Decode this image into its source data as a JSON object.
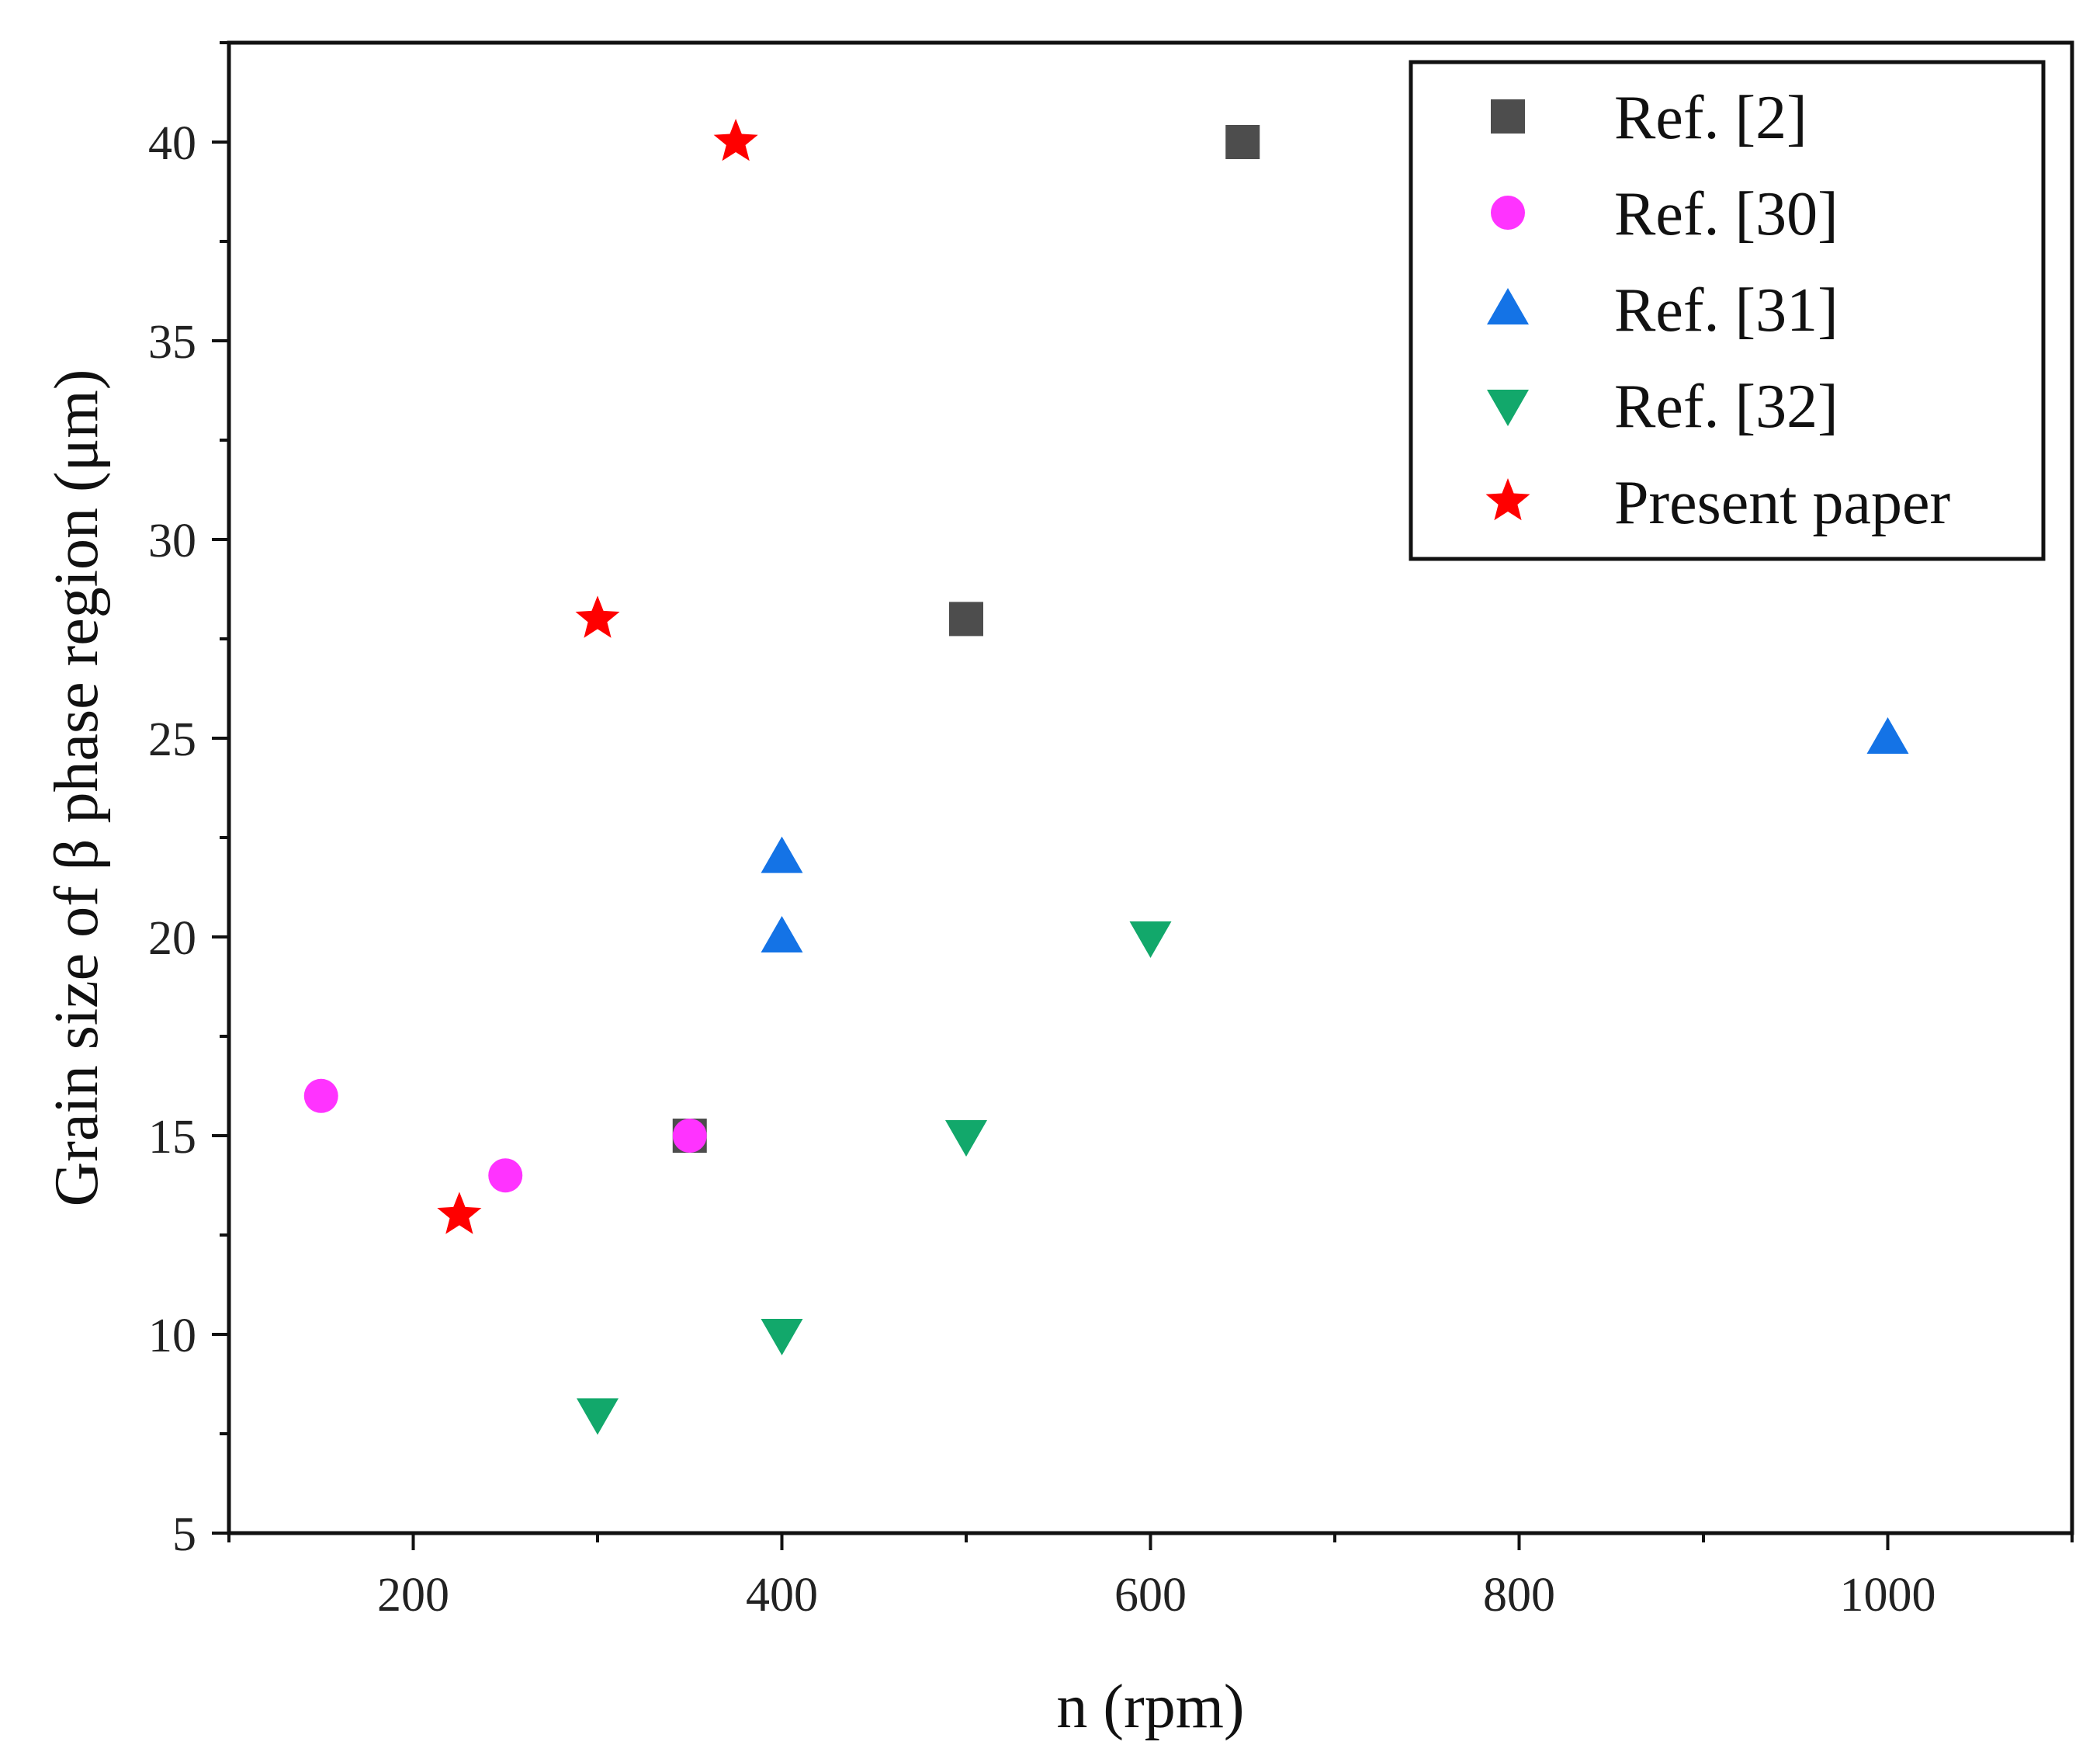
{
  "chart_data": {
    "type": "scatter",
    "title": "",
    "xlabel": "n (rpm)",
    "ylabel": "Grain size of β phase region (μm)",
    "xlim": [
      100,
      1100
    ],
    "ylim": [
      5,
      42.5
    ],
    "xticks": [
      200,
      400,
      600,
      800,
      1000
    ],
    "xtick_labels": [
      "200",
      "400",
      "600",
      "800",
      "1000"
    ],
    "yticks": [
      5,
      10,
      15,
      20,
      25,
      30,
      35,
      40
    ],
    "ytick_labels": [
      "5",
      "10",
      "15",
      "20",
      "25",
      "30",
      "35",
      "40"
    ],
    "grid": false,
    "legend_position": "top-right",
    "series": [
      {
        "name": "Ref. [2]",
        "marker": "square",
        "color": "#4d4d4d",
        "points": [
          [
            350,
            15
          ],
          [
            500,
            28
          ],
          [
            650,
            40
          ]
        ]
      },
      {
        "name": "Ref. [30]",
        "marker": "circle",
        "color": "#ff33ff",
        "points": [
          [
            150,
            16
          ],
          [
            250,
            14
          ],
          [
            350,
            15
          ]
        ]
      },
      {
        "name": "Ref. [31]",
        "marker": "triangle-up",
        "color": "#1473e6",
        "points": [
          [
            400,
            20
          ],
          [
            400,
            22
          ],
          [
            1000,
            25
          ]
        ]
      },
      {
        "name": "Ref. [32]",
        "marker": "triangle-down",
        "color": "#12a86b",
        "points": [
          [
            300,
            8
          ],
          [
            400,
            10
          ],
          [
            500,
            15
          ],
          [
            600,
            20
          ]
        ]
      },
      {
        "name": "Present paper",
        "marker": "star",
        "color": "#ff0000",
        "points": [
          [
            225,
            13
          ],
          [
            300,
            28
          ],
          [
            375,
            40
          ]
        ]
      }
    ]
  }
}
